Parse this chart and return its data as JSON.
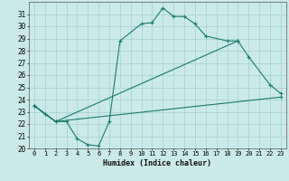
{
  "xlabel": "Humidex (Indice chaleur)",
  "background_color": "#cce9e9",
  "grid_color": "#aad4d4",
  "line_color": "#1a7a6e",
  "xlim": [
    -0.5,
    23.5
  ],
  "ylim": [
    20,
    32
  ],
  "xticks": [
    0,
    1,
    2,
    3,
    4,
    5,
    6,
    7,
    8,
    9,
    10,
    11,
    12,
    13,
    14,
    15,
    16,
    17,
    18,
    19,
    20,
    21,
    22,
    23
  ],
  "yticks": [
    20,
    21,
    22,
    23,
    24,
    25,
    26,
    27,
    28,
    29,
    30,
    31
  ],
  "series": [
    {
      "x": [
        0,
        1,
        2,
        3,
        4,
        5,
        6,
        7,
        8,
        10,
        11,
        12,
        13,
        14,
        15,
        16,
        18,
        19
      ],
      "y": [
        23.5,
        22.8,
        22.2,
        22.2,
        20.8,
        20.3,
        20.2,
        22.2,
        28.8,
        30.2,
        30.3,
        31.5,
        30.8,
        30.8,
        30.2,
        29.2,
        28.8,
        28.8
      ]
    },
    {
      "x": [
        0,
        2,
        19,
        20,
        22,
        23
      ],
      "y": [
        23.5,
        22.2,
        28.8,
        27.5,
        25.2,
        24.5
      ]
    },
    {
      "x": [
        0,
        2,
        23
      ],
      "y": [
        23.5,
        22.2,
        24.2
      ]
    }
  ]
}
